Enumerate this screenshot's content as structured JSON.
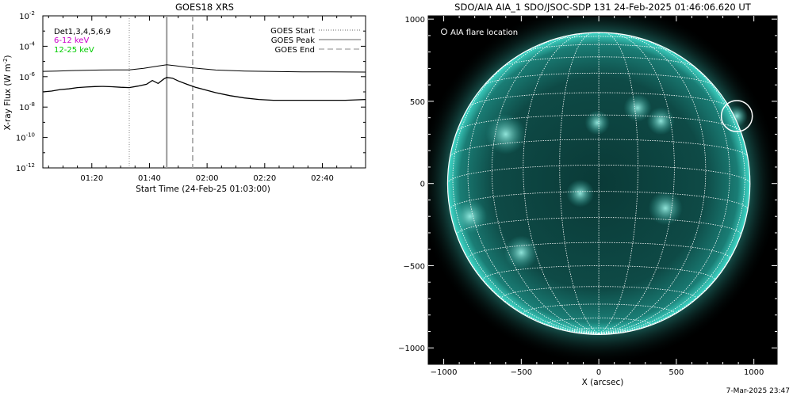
{
  "footer_timestamp": "7-Mar-2025 23:47",
  "chart_data": [
    {
      "type": "line",
      "title": "GOES18 XRS",
      "xlabel": "Start Time (24-Feb-25 01:03:00)",
      "ylabel": "X-ray Flux (W m",
      "ylabel_sup": "-2",
      "ylabel_close": ")",
      "xlim_minutes": [
        0,
        112
      ],
      "x_tick_labels": [
        {
          "minute": 17,
          "label": "01:20"
        },
        {
          "minute": 37,
          "label": "01:40"
        },
        {
          "minute": 57,
          "label": "02:00"
        },
        {
          "minute": 77,
          "label": "02:20"
        },
        {
          "minute": 97,
          "label": "02:40"
        }
      ],
      "ylog_range": [
        -12,
        -2
      ],
      "y_tick_labels": [
        {
          "exp": -2,
          "label": "10",
          "sup": "-2"
        },
        {
          "exp": -4,
          "label": "10",
          "sup": "-4"
        },
        {
          "exp": -6,
          "label": "10",
          "sup": "-6"
        },
        {
          "exp": -8,
          "label": "10",
          "sup": "-8"
        },
        {
          "exp": -10,
          "label": "10",
          "sup": "-10"
        },
        {
          "exp": -12,
          "label": "10",
          "sup": "-12"
        }
      ],
      "channel_labels": [
        {
          "text": "Det1,3,4,5,6,9",
          "color": "#000000"
        },
        {
          "text": "6-12 keV",
          "color": "#cc00cc"
        },
        {
          "text": "12-25 keV",
          "color": "#00cc00"
        }
      ],
      "legend": {
        "placement": "top-right",
        "entries": [
          {
            "label": "GOES Start",
            "style": "dotted"
          },
          {
            "label": "GOES Peak",
            "style": "solid"
          },
          {
            "label": "GOES End",
            "style": "dashed"
          }
        ]
      },
      "event_lines": {
        "start_minute": 30,
        "peak_minute": 43,
        "end_minute": 52
      },
      "series": [
        {
          "x_minutes": [
            0,
            5,
            10,
            15,
            20,
            25,
            30,
            35,
            40,
            43,
            46,
            50,
            55,
            60,
            70,
            80,
            90,
            100,
            112
          ],
          "log_flux": [
            -5.65,
            -5.63,
            -5.6,
            -5.58,
            -5.56,
            -5.55,
            -5.55,
            -5.45,
            -5.3,
            -5.22,
            -5.28,
            -5.38,
            -5.48,
            -5.56,
            -5.63,
            -5.66,
            -5.68,
            -5.69,
            -5.7
          ]
        },
        {
          "x_minutes": [
            0,
            3,
            6,
            9,
            12,
            15,
            18,
            21,
            24,
            27,
            30,
            33,
            36,
            38,
            40,
            42,
            43,
            45,
            47,
            50,
            53,
            56,
            60,
            65,
            70,
            75,
            80,
            85,
            90,
            95,
            100,
            105,
            112
          ],
          "log_flux": [
            -7.0,
            -6.95,
            -6.85,
            -6.8,
            -6.72,
            -6.68,
            -6.65,
            -6.64,
            -6.66,
            -6.7,
            -6.72,
            -6.62,
            -6.5,
            -6.25,
            -6.45,
            -6.15,
            -6.05,
            -6.1,
            -6.28,
            -6.5,
            -6.7,
            -6.85,
            -7.05,
            -7.25,
            -7.4,
            -7.5,
            -7.55,
            -7.55,
            -7.55,
            -7.55,
            -7.55,
            -7.55,
            -7.5
          ]
        }
      ]
    },
    {
      "type": "image",
      "title": "SDO/AIA AIA_1 SDO/JSOC-SDP 131 24-Feb-2025 01:46:06.620 UT",
      "xlabel": "X (arcsec)",
      "xlim": [
        -1100,
        1150
      ],
      "ylim": [
        -1100,
        1020
      ],
      "x_tick_labels": [
        {
          "value": -1000,
          "label": "−1000"
        },
        {
          "value": -500,
          "label": "−500"
        },
        {
          "value": 0,
          "label": "0"
        },
        {
          "value": 500,
          "label": "500"
        },
        {
          "value": 1000,
          "label": "1000"
        }
      ],
      "y_tick_labels": [
        {
          "value": 1000,
          "label": "1000"
        },
        {
          "value": 500,
          "label": "500"
        },
        {
          "value": 0,
          "label": "0"
        },
        {
          "value": -500,
          "label": "−500"
        },
        {
          "value": -1000,
          "label": "−1000"
        }
      ],
      "legend_label": "AIA flare location",
      "solar_radius_arcsec": 975,
      "flare_location_arcsec": [
        890,
        410
      ],
      "colors": {
        "background": "#000000",
        "disk": "#0e4a46",
        "limb_glow": "#3fd8c8",
        "grid": "#ffffff"
      }
    }
  ]
}
